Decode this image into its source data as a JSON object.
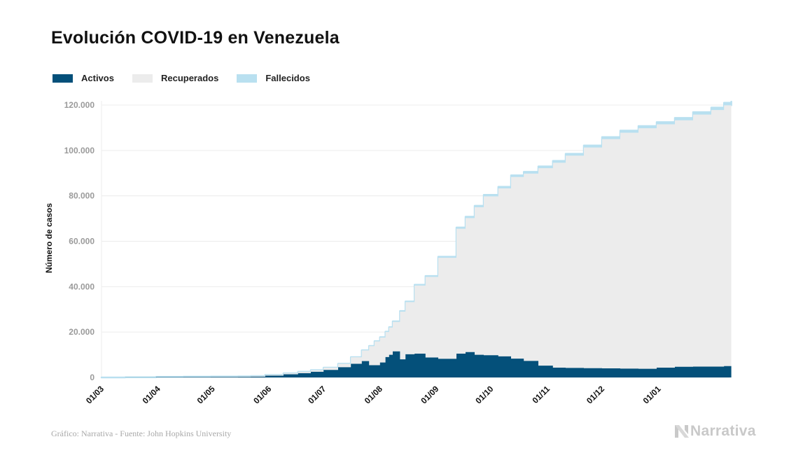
{
  "header": {
    "title": "Evolución COVID-19 en Venezuela"
  },
  "legend": [
    {
      "label": "Activos",
      "color": "#04507a"
    },
    {
      "label": "Recuperados",
      "color": "#ececec"
    },
    {
      "label": "Fallecidos",
      "color": "#b9e0f0"
    }
  ],
  "footer": {
    "source": "Gráfico: Narrativa - Fuente: John Hopkins University",
    "brand": "Narrativa",
    "brand_icon": "narrativa-logo-icon"
  },
  "chart_data": {
    "type": "area",
    "stacked": true,
    "title": "Evolución COVID-19 en Venezuela",
    "xlabel": "",
    "ylabel": "Número de casos",
    "ylim": [
      0,
      120000
    ],
    "yticks": [
      0,
      20000,
      40000,
      60000,
      80000,
      100000,
      120000
    ],
    "ytick_labels": [
      "0",
      "20.000",
      "40.000",
      "60.000",
      "80.000",
      "100.000",
      "120.000"
    ],
    "xticks_day_offset": [
      0,
      31,
      61,
      92,
      122,
      153,
      184,
      214,
      245,
      275,
      306
    ],
    "xtick_labels": [
      "01/03",
      "01/04",
      "01/05",
      "01/06",
      "01/07",
      "01/08",
      "01/09",
      "01/10",
      "01/11",
      "01/12",
      "01/01"
    ],
    "xlim_days": [
      0,
      346
    ],
    "grid": true,
    "legend_position": "top-left",
    "series_order": [
      "Activos",
      "Recuperados",
      "Fallecidos"
    ],
    "x_day_offset": [
      0,
      13,
      30,
      45,
      60,
      75,
      82,
      90,
      100,
      108,
      115,
      122,
      130,
      137,
      143,
      147,
      150,
      153,
      156,
      158,
      160,
      164,
      167,
      172,
      178,
      185,
      195,
      200,
      205,
      210,
      218,
      225,
      232,
      240,
      248,
      255,
      265,
      275,
      285,
      295,
      305,
      315,
      325,
      335,
      342,
      346
    ],
    "series": [
      {
        "name": "Activos",
        "values": [
          0,
          20,
          150,
          200,
          250,
          280,
          350,
          800,
          1400,
          1900,
          2500,
          3300,
          4500,
          6000,
          7200,
          5400,
          5400,
          6600,
          9000,
          10000,
          11500,
          8000,
          10200,
          10500,
          8800,
          8200,
          10500,
          11200,
          10000,
          9800,
          9300,
          8300,
          7300,
          5200,
          4300,
          4200,
          4100,
          4000,
          3900,
          3800,
          4300,
          4700,
          4800,
          4800,
          5000,
          5200
        ]
      },
      {
        "name": "Recuperados",
        "values": [
          0,
          50,
          100,
          120,
          150,
          200,
          250,
          350,
          400,
          600,
          700,
          1000,
          1500,
          2900,
          4700,
          8400,
          10500,
          11000,
          11000,
          12000,
          13000,
          21000,
          23000,
          30000,
          35500,
          44500,
          55000,
          59000,
          65000,
          70000,
          74000,
          80000,
          82500,
          87000,
          90300,
          93500,
          97200,
          101000,
          103900,
          106000,
          107200,
          108600,
          111000,
          113000,
          114900,
          115200
        ]
      },
      {
        "name": "Fallecidos",
        "values": [
          0,
          2,
          9,
          10,
          10,
          10,
          11,
          14,
          20,
          24,
          30,
          35,
          50,
          65,
          80,
          100,
          120,
          140,
          170,
          180,
          200,
          250,
          280,
          330,
          400,
          470,
          550,
          580,
          620,
          650,
          700,
          720,
          760,
          780,
          800,
          840,
          880,
          900,
          930,
          960,
          990,
          1030,
          1060,
          1080,
          1100,
          1110
        ]
      }
    ]
  }
}
